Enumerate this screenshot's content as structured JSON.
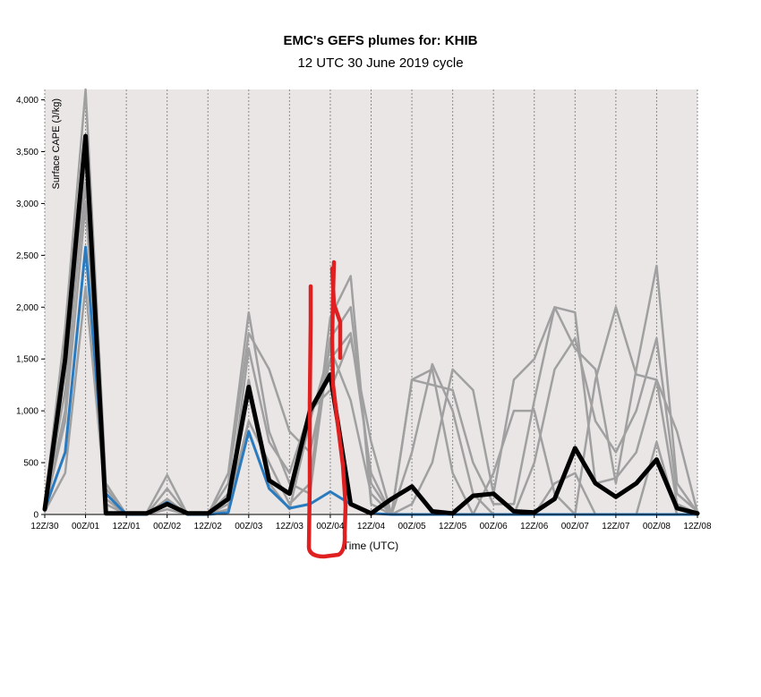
{
  "chart_data": {
    "type": "line",
    "title": "EMC's GEFS plumes for: KHIB",
    "subtitle": "12 UTC 30 June 2019 cycle",
    "x_label": "Time (UTC)",
    "y_label": "Surface CAPE (J/kg)",
    "x": [
      0,
      6,
      12,
      18,
      24,
      30,
      36,
      42,
      48,
      54,
      60,
      66,
      72,
      78,
      84,
      90,
      96,
      102,
      108,
      114,
      120,
      126,
      132,
      138,
      144,
      150,
      156,
      162,
      168,
      174,
      180,
      186,
      192
    ],
    "xlim": [
      0,
      192
    ],
    "xticks": [
      {
        "value": 0,
        "label": "12Z/30"
      },
      {
        "value": 12,
        "label": "00Z/01"
      },
      {
        "value": 24,
        "label": "12Z/01"
      },
      {
        "value": 36,
        "label": "00Z/02"
      },
      {
        "value": 48,
        "label": "12Z/02"
      },
      {
        "value": 60,
        "label": "00Z/03"
      },
      {
        "value": 72,
        "label": "12Z/03"
      },
      {
        "value": 84,
        "label": "00Z/04"
      },
      {
        "value": 96,
        "label": "12Z/04"
      },
      {
        "value": 108,
        "label": "00Z/05"
      },
      {
        "value": 120,
        "label": "12Z/05"
      },
      {
        "value": 132,
        "label": "00Z/06"
      },
      {
        "value": 144,
        "label": "12Z/06"
      },
      {
        "value": 156,
        "label": "00Z/07"
      },
      {
        "value": 168,
        "label": "12Z/07"
      },
      {
        "value": 180,
        "label": "00Z/08"
      },
      {
        "value": 192,
        "label": "12Z/08"
      }
    ],
    "ylim": [
      0,
      4100
    ],
    "yticks": [
      0,
      500,
      {
        "value": 1000,
        "label": "1,000"
      },
      {
        "value": 1500,
        "label": "1,500"
      },
      {
        "value": 2000,
        "label": "2,000"
      },
      {
        "value": 2500,
        "label": "2,500"
      },
      {
        "value": 3000,
        "label": "3,000"
      },
      {
        "value": 3500,
        "label": "3,500"
      },
      {
        "value": 4000,
        "label": "4,000"
      }
    ],
    "grid": true,
    "series": [
      {
        "color": "#a0a0a0",
        "line_width": 2.5,
        "values": [
          100,
          1800,
          4100,
          300,
          0,
          0,
          250,
          0,
          0,
          400,
          1950,
          800,
          300,
          200,
          1700,
          2000,
          300,
          0,
          1300,
          1250,
          1200,
          500,
          100,
          100,
          1100,
          2000,
          1950,
          300,
          350,
          600,
          1300,
          800,
          20
        ]
      },
      {
        "color": "#a0a0a0",
        "line_width": 2.5,
        "values": [
          80,
          1200,
          3200,
          200,
          0,
          20,
          380,
          0,
          0,
          300,
          1750,
          1400,
          800,
          600,
          1500,
          1750,
          400,
          0,
          600,
          1450,
          1000,
          200,
          0,
          0,
          500,
          1400,
          1700,
          900,
          600,
          1000,
          1700,
          200,
          30
        ]
      },
      {
        "color": "#a0a0a0",
        "line_width": 2.5,
        "values": [
          50,
          900,
          3000,
          150,
          0,
          0,
          100,
          0,
          0,
          100,
          900,
          500,
          100,
          300,
          1900,
          2300,
          100,
          0,
          1300,
          1400,
          400,
          0,
          400,
          1000,
          1000,
          200,
          0,
          1300,
          2000,
          1350,
          1300,
          100,
          10
        ]
      },
      {
        "color": "#a0a0a0",
        "line_width": 2.5,
        "values": [
          30,
          400,
          2200,
          100,
          0,
          0,
          50,
          0,
          0,
          50,
          1600,
          700,
          400,
          1000,
          1200,
          1700,
          700,
          0,
          100,
          500,
          1400,
          1200,
          200,
          1300,
          1500,
          2000,
          1600,
          1400,
          300,
          1400,
          2400,
          300,
          20
        ]
      },
      {
        "color": "#a0a0a0",
        "line_width": 2.5,
        "values": [
          60,
          1000,
          3500,
          250,
          0,
          0,
          150,
          0,
          0,
          200,
          1300,
          300,
          50,
          900,
          1600,
          1100,
          200,
          0,
          0,
          0,
          0,
          0,
          0,
          0,
          0,
          300,
          400,
          0,
          0,
          0,
          700,
          0,
          0
        ]
      },
      {
        "color": "#2a7abf",
        "line_width": 3,
        "values": [
          50,
          600,
          2580,
          200,
          0,
          0,
          120,
          0,
          0,
          20,
          800,
          250,
          60,
          100,
          220,
          100,
          10,
          0,
          0,
          0,
          0,
          0,
          0,
          0,
          0,
          0,
          0,
          0,
          0,
          0,
          0,
          0,
          0
        ]
      },
      {
        "color": "#000000",
        "line_width": 5,
        "values": [
          50,
          1500,
          3650,
          10,
          10,
          10,
          100,
          10,
          10,
          150,
          1230,
          330,
          200,
          1000,
          1350,
          100,
          10,
          150,
          270,
          30,
          10,
          180,
          200,
          30,
          20,
          150,
          640,
          300,
          170,
          300,
          530,
          60,
          10
        ]
      }
    ]
  }
}
